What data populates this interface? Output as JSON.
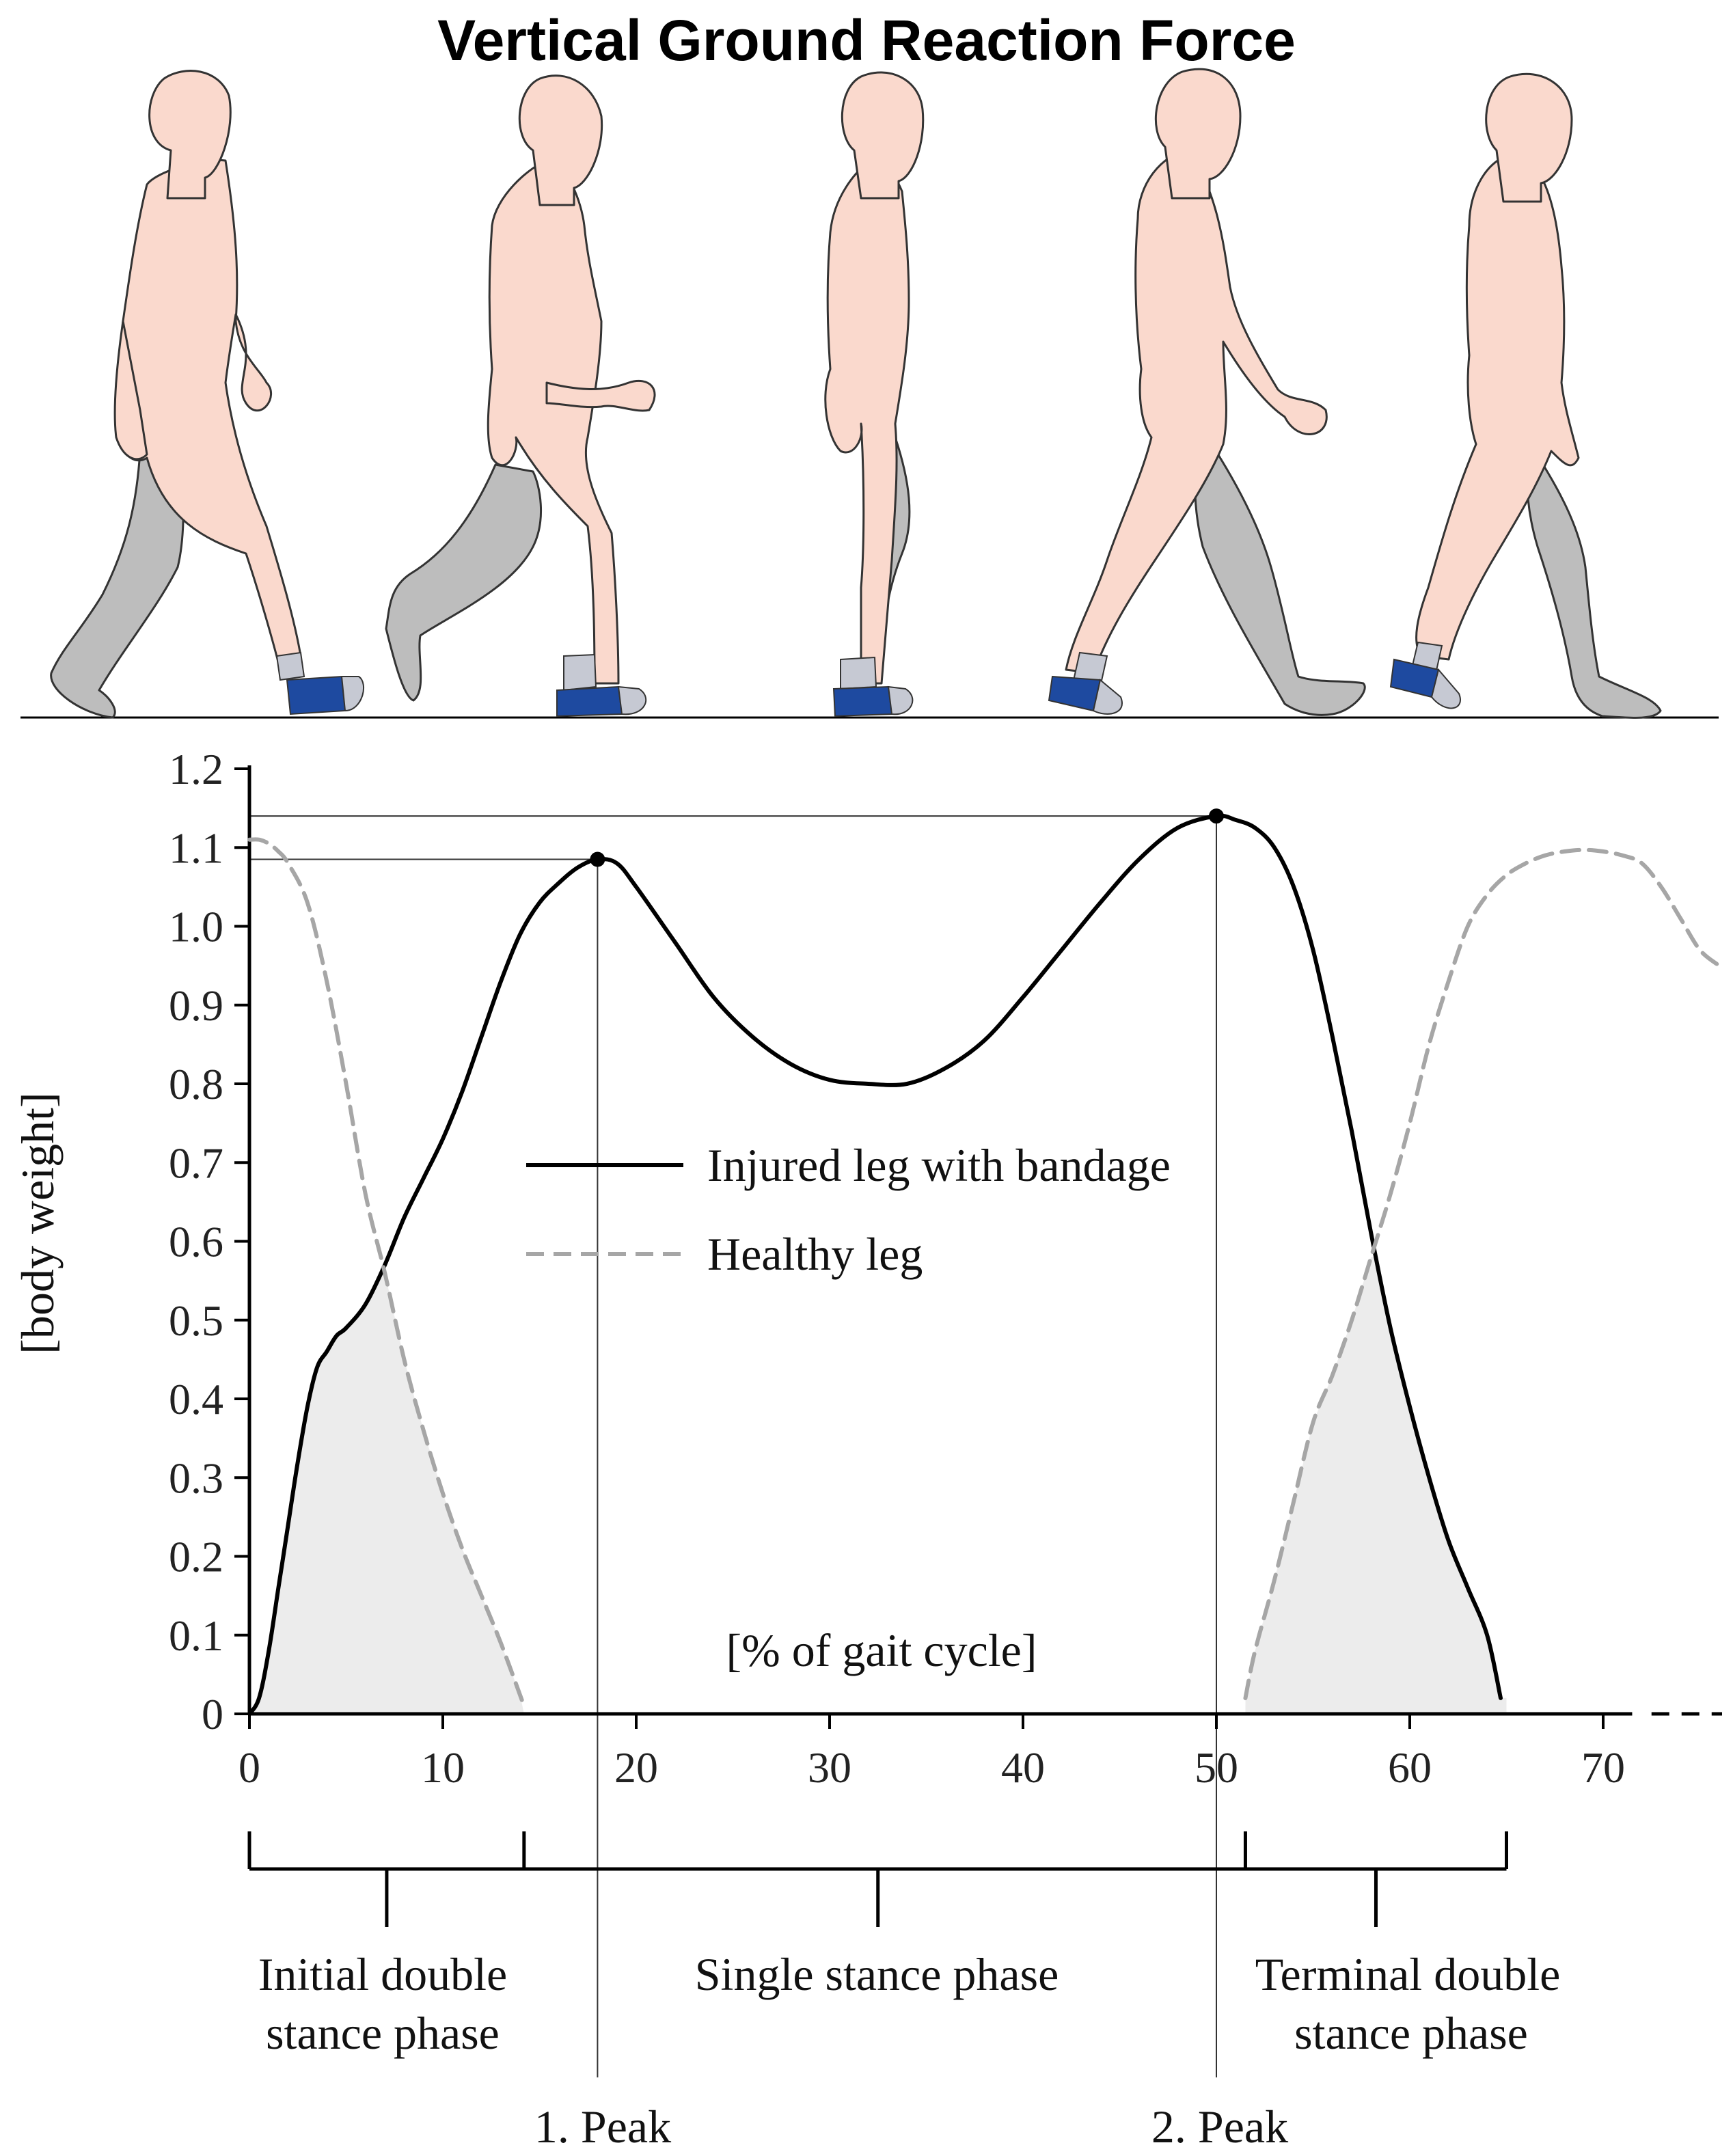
{
  "chart_data": {
    "type": "line",
    "title": "Vertical Ground Reaction Force",
    "ylabel": "[body weight]",
    "xlabel": "[% of gait cycle]",
    "xlim": [
      0,
      77
    ],
    "ylim": [
      0,
      1.2
    ],
    "xticks": [
      0,
      10,
      20,
      30,
      40,
      50,
      60,
      70
    ],
    "xtick_labels": [
      "0",
      "10",
      "20",
      "30",
      "40",
      "50",
      "60",
      "70"
    ],
    "yticks": [
      0,
      0.1,
      0.2,
      0.3,
      0.4,
      0.5,
      0.6,
      0.7,
      0.8,
      0.9,
      1.0,
      1.1,
      1.2
    ],
    "ytick_labels": [
      "0",
      "0.1",
      "0.2",
      "0.3",
      "0.4",
      "0.5",
      "0.6",
      "0.7",
      "0.8",
      "0.9",
      "1.0",
      "1.1",
      "1.2"
    ],
    "series": [
      {
        "name": "Injured leg with bandage",
        "style": "solid",
        "color": "#000000",
        "x": [
          0,
          0.5,
          1,
          1.5,
          2,
          2.5,
          3,
          3.5,
          4,
          4.5,
          5,
          6,
          7,
          8,
          9,
          10,
          11,
          12,
          13,
          14,
          15,
          16,
          17,
          18,
          19,
          20,
          22,
          24,
          26,
          28,
          30,
          32,
          34,
          36,
          38,
          40,
          42,
          44,
          46,
          48,
          50,
          51,
          52,
          53,
          54,
          55,
          56,
          57,
          58,
          59,
          60,
          61,
          62,
          63,
          64,
          64.7
        ],
        "y": [
          0,
          0.02,
          0.08,
          0.16,
          0.24,
          0.32,
          0.39,
          0.44,
          0.46,
          0.48,
          0.49,
          0.52,
          0.57,
          0.63,
          0.68,
          0.73,
          0.79,
          0.86,
          0.93,
          0.99,
          1.03,
          1.055,
          1.075,
          1.085,
          1.08,
          1.05,
          0.98,
          0.91,
          0.86,
          0.825,
          0.805,
          0.8,
          0.8,
          0.82,
          0.855,
          0.91,
          0.97,
          1.03,
          1.085,
          1.125,
          1.14,
          1.135,
          1.125,
          1.1,
          1.05,
          0.97,
          0.86,
          0.74,
          0.61,
          0.49,
          0.39,
          0.3,
          0.22,
          0.16,
          0.1,
          0.02
        ]
      },
      {
        "name": "Healthy leg",
        "style": "dashed",
        "color": "#a6a6a6",
        "x": [
          0,
          0.5,
          1,
          1.5,
          2,
          3,
          4,
          5,
          6,
          7,
          8,
          9,
          10,
          11,
          12,
          13,
          14.2
        ],
        "y": [
          1.11,
          1.11,
          1.105,
          1.095,
          1.08,
          1.03,
          0.93,
          0.8,
          0.66,
          0.56,
          0.45,
          0.36,
          0.28,
          0.21,
          0.15,
          0.09,
          0.01
        ]
      },
      {
        "name": "",
        "style": "dashed",
        "color": "#a6a6a6",
        "x": [
          51.5,
          52,
          53,
          54,
          55,
          56,
          57,
          58,
          59,
          60,
          61,
          62,
          63,
          64,
          65,
          66,
          67,
          68,
          69,
          70,
          71,
          72,
          73,
          74,
          75,
          76
        ],
        "y": [
          0.02,
          0.08,
          0.17,
          0.27,
          0.37,
          0.43,
          0.5,
          0.58,
          0.66,
          0.75,
          0.85,
          0.93,
          1.0,
          1.04,
          1.065,
          1.08,
          1.09,
          1.095,
          1.097,
          1.095,
          1.09,
          1.08,
          1.05,
          1.01,
          0.97,
          0.95
        ]
      }
    ],
    "peaks": [
      {
        "label": "1. Peak",
        "x": 18,
        "y": 1.085
      },
      {
        "label": "2. Peak",
        "x": 50,
        "y": 1.14
      }
    ],
    "phases": [
      {
        "label_line1": "Initial double",
        "label_line2": "stance phase",
        "x_start": 0,
        "x_end": 14.2
      },
      {
        "label_line1": "Single stance phase",
        "label_line2": "",
        "x_start": 0,
        "x_end": 65
      },
      {
        "label_line1": "Terminal double",
        "label_line2": "stance phase",
        "x_start": 51.5,
        "x_end": 65
      }
    ],
    "shaded_regions": [
      {
        "x_start": 0,
        "x_end": 14.2
      },
      {
        "x_start": 51.5,
        "x_end": 65
      }
    ],
    "legend_position": "center"
  },
  "illustration": {
    "figures": [
      "walking-figure-1",
      "walking-figure-2",
      "walking-figure-3",
      "walking-figure-4",
      "walking-figure-5"
    ],
    "skin_color": "#fad9cd",
    "leg_color": "#bdbdbd",
    "bandage_color": "#1e4aa0"
  }
}
